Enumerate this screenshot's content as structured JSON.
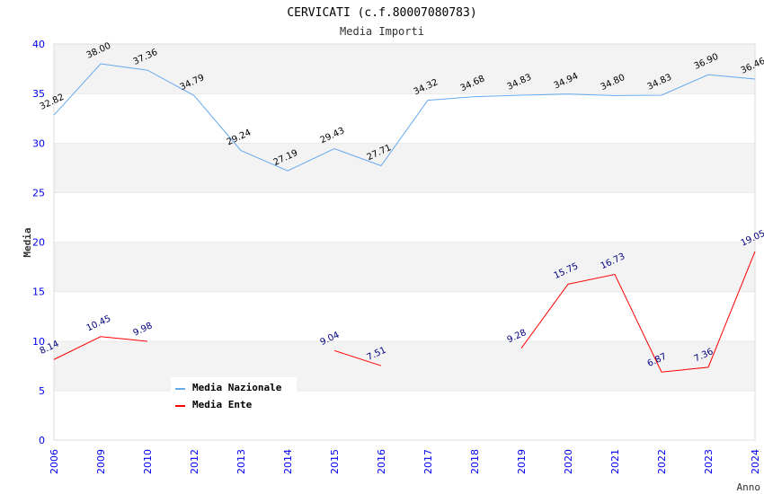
{
  "chart_data": {
    "type": "line",
    "title": "CERVICATI (c.f.80007080783)",
    "subtitle": "Media Importi",
    "xlabel": "Anno",
    "ylabel": "Media",
    "ylim": [
      0,
      40
    ],
    "yticks": [
      0,
      5,
      10,
      15,
      20,
      25,
      30,
      35,
      40
    ],
    "categories": [
      "2006",
      "2009",
      "2010",
      "2012",
      "2013",
      "2014",
      "2015",
      "2016",
      "2017",
      "2018",
      "2019",
      "2020",
      "2021",
      "2022",
      "2023",
      "2024"
    ],
    "series": [
      {
        "name": "Media Nazionale",
        "color": "#66aaee",
        "label_color": "#000000",
        "values": [
          32.82,
          38.0,
          37.36,
          34.79,
          29.24,
          27.19,
          29.43,
          27.71,
          34.32,
          34.68,
          34.83,
          34.94,
          34.8,
          34.83,
          36.9,
          36.46
        ]
      },
      {
        "name": "Media Ente",
        "color": "#ff0000",
        "label_color": "#000080",
        "values": [
          8.14,
          10.45,
          9.98,
          null,
          null,
          null,
          9.04,
          7.51,
          null,
          null,
          9.28,
          15.75,
          16.73,
          6.87,
          7.36,
          19.05
        ]
      }
    ],
    "legend_position": "top-right",
    "grid": "horizontal bands"
  }
}
